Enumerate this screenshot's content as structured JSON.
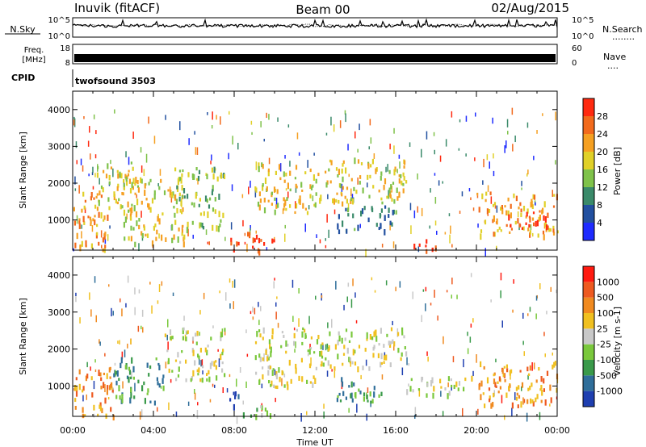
{
  "header": {
    "station": "Inuvik (fitACF)",
    "beam": "Beam 00",
    "date": "02/Aug/2015"
  },
  "nsky_panel": {
    "left_label": "N.Sky",
    "left_ticks": [
      "10^5",
      "10^0"
    ],
    "right_ticks": [
      "10^5",
      "10^0"
    ],
    "right_label": "N.Search",
    "right_legend_dots": "........"
  },
  "freq_panel": {
    "left_label_1": "Freq.",
    "left_label_2": "[MHz]",
    "left_ticks": [
      "18",
      "8"
    ],
    "right_ticks": [
      "60",
      "0"
    ],
    "right_label": "Nave",
    "right_legend_dots": "...."
  },
  "cpid_panel": {
    "label": "CPID",
    "program": "twofsound 3503"
  },
  "time_axis": {
    "xlabel": "Time UT",
    "ticks": [
      "00:00",
      "04:00",
      "08:00",
      "12:00",
      "16:00",
      "20:00",
      "00:00"
    ]
  },
  "chart_data": [
    {
      "type": "heatmap",
      "name_hint": "power",
      "ylabel": "Slant Range [km]",
      "yticks": [
        "1000",
        "2000",
        "3000",
        "4000"
      ],
      "ylim": [
        180,
        4500
      ],
      "xlim_hours": [
        0,
        24
      ],
      "colorbar": {
        "label": "Power [dB]",
        "ticks": [
          "4",
          "8",
          "12",
          "16",
          "20",
          "24",
          "28"
        ],
        "colors": [
          "#1e2bff",
          "#2250a0",
          "#3a8a6a",
          "#7fc24a",
          "#e0d028",
          "#f5a022",
          "#f26a1c",
          "#ff2a10"
        ]
      },
      "features": [
        {
          "t0": 0.0,
          "t1": 1.8,
          "r0": 200,
          "r1": 1800,
          "level": 5
        },
        {
          "t0": 1.0,
          "t1": 3.2,
          "r0": 1200,
          "r1": 2600,
          "level": 4
        },
        {
          "t0": 2.5,
          "t1": 5.5,
          "r0": 400,
          "r1": 2200,
          "level": 4
        },
        {
          "t0": 5.0,
          "t1": 7.5,
          "r0": 800,
          "r1": 2500,
          "level": 3
        },
        {
          "t0": 7.8,
          "t1": 10.0,
          "r0": 200,
          "r1": 700,
          "level": 7
        },
        {
          "t0": 9.0,
          "t1": 12.0,
          "r0": 1200,
          "r1": 2600,
          "level": 4
        },
        {
          "t0": 12.0,
          "t1": 16.5,
          "r0": 1500,
          "r1": 2700,
          "level": 4
        },
        {
          "t0": 13.0,
          "t1": 16.0,
          "r0": 700,
          "r1": 1400,
          "level": 2
        },
        {
          "t0": 16.5,
          "t1": 18.0,
          "r0": 200,
          "r1": 500,
          "level": 7
        },
        {
          "t0": 20.0,
          "t1": 24.0,
          "r0": 600,
          "r1": 1800,
          "level": 5
        },
        {
          "t0": 21.5,
          "t1": 23.5,
          "r0": 800,
          "r1": 1300,
          "level": 7
        }
      ]
    },
    {
      "type": "heatmap",
      "name_hint": "velocity",
      "ylabel": "Slant Range [km]",
      "yticks": [
        "1000",
        "2000",
        "3000",
        "4000"
      ],
      "ylim": [
        180,
        4500
      ],
      "xlim_hours": [
        0,
        24
      ],
      "colorbar": {
        "label": "Velocity [m s-1]",
        "ticks": [
          "1000",
          "500",
          "100",
          "25",
          "-25",
          "-100",
          "-500",
          "-1000"
        ],
        "colors": [
          "#1f3fb0",
          "#2f6e9a",
          "#3a9a4a",
          "#7ac83c",
          "#c8c8c8",
          "#f0c020",
          "#f08a20",
          "#ee5a20",
          "#ff1a10"
        ]
      },
      "features": [
        {
          "t0": 0.0,
          "t1": 2.0,
          "r0": 200,
          "r1": 1600,
          "level": 6
        },
        {
          "t0": 2.0,
          "t1": 4.5,
          "r0": 600,
          "r1": 1800,
          "level": 2
        },
        {
          "t0": 4.5,
          "t1": 7.5,
          "r0": 1200,
          "r1": 2600,
          "level": 4
        },
        {
          "t0": 7.5,
          "t1": 8.2,
          "r0": 400,
          "r1": 900,
          "level": 0
        },
        {
          "t0": 8.0,
          "t1": 10.0,
          "r0": 200,
          "r1": 500,
          "level": 3
        },
        {
          "t0": 9.0,
          "t1": 12.0,
          "r0": 1000,
          "r1": 2600,
          "level": 4
        },
        {
          "t0": 12.0,
          "t1": 16.5,
          "r0": 1500,
          "r1": 2600,
          "level": 4
        },
        {
          "t0": 13.0,
          "t1": 15.5,
          "r0": 600,
          "r1": 1300,
          "level": 2
        },
        {
          "t0": 16.5,
          "t1": 20.0,
          "r0": 800,
          "r1": 1300,
          "level": 4
        },
        {
          "t0": 20.0,
          "t1": 24.0,
          "r0": 500,
          "r1": 1700,
          "level": 6
        }
      ]
    }
  ]
}
